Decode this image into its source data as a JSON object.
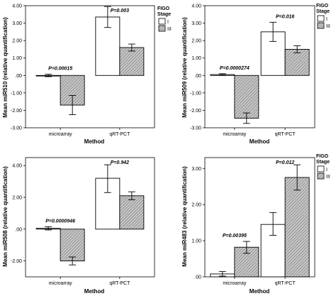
{
  "colors": {
    "stage_I_fill": "#ffffff",
    "stage_III_fill": "#9a9a9a",
    "stage_III_pattern": "diagonal-hatch",
    "axis": "#000000"
  },
  "chart_data": [
    {
      "type": "bar",
      "panel": "top-left",
      "categories": [
        "microarray",
        "qRT-PCT"
      ],
      "series": [
        {
          "name": "I",
          "values": [
            0.0,
            3.35
          ],
          "err_low": [
            -0.07,
            2.75
          ],
          "err_high": [
            0.07,
            3.95
          ]
        },
        {
          "name": "III",
          "values": [
            -1.7,
            1.6
          ],
          "err_low": [
            -2.25,
            1.4
          ],
          "err_high": [
            -1.15,
            1.8
          ]
        }
      ],
      "ylim": [
        -3.0,
        4.0
      ],
      "yticks": [
        "4.00",
        "3.00",
        "2.00",
        "1.00",
        ".00",
        "-1.00",
        "-2.00",
        "-3.00"
      ],
      "ytick_values": [
        4,
        3,
        2,
        1,
        0,
        -1,
        -2,
        -3
      ],
      "xlabel": "Method",
      "ylabel": "Mean miR510 (relative quantification)",
      "annotations": [
        {
          "text": "P=0.00015",
          "category": 0
        },
        {
          "text": "P=0.003",
          "category": 1
        }
      ],
      "legend": {
        "title_line1": "FIGO",
        "title_line2": "Stage",
        "labels": [
          "I",
          "III"
        ],
        "placement": "top-right"
      }
    },
    {
      "type": "bar",
      "panel": "top-right",
      "categories": [
        "microarray",
        "qRT-PCT"
      ],
      "series": [
        {
          "name": "I",
          "values": [
            0.05,
            2.5
          ],
          "err_low": [
            0.0,
            1.95
          ],
          "err_high": [
            0.1,
            3.05
          ]
        },
        {
          "name": "III",
          "values": [
            -2.45,
            1.5
          ],
          "err_low": [
            -2.75,
            1.3
          ],
          "err_high": [
            -2.15,
            1.7
          ]
        }
      ],
      "ylim": [
        -3.0,
        4.0
      ],
      "yticks": [
        "4.00",
        "3.00",
        "2.00",
        "1.00",
        ".00",
        "-1.00",
        "-2.00",
        "-3.00"
      ],
      "ytick_values": [
        4,
        3,
        2,
        1,
        0,
        -1,
        -2,
        -3
      ],
      "xlabel": "Method",
      "ylabel": "Mean miR509 (relative quantification)",
      "annotations": [
        {
          "text": "P=0.0000274",
          "category": 0
        },
        {
          "text": "P=0.016",
          "category": 1
        }
      ],
      "legend": {
        "title_line1": "FIGO",
        "title_line2": "Stage",
        "labels": [
          "I",
          "III"
        ],
        "placement": "top-right"
      }
    },
    {
      "type": "bar",
      "panel": "bottom-left",
      "categories": [
        "microarray",
        "qRT-PCT"
      ],
      "series": [
        {
          "name": "I",
          "values": [
            0.05,
            3.2
          ],
          "err_low": [
            -0.05,
            2.3
          ],
          "err_high": [
            0.15,
            4.05
          ]
        },
        {
          "name": "III",
          "values": [
            -2.0,
            2.1
          ],
          "err_low": [
            -2.25,
            1.85
          ],
          "err_high": [
            -1.75,
            2.35
          ]
        }
      ],
      "ylim": [
        -3.0,
        4.5
      ],
      "yticks": [
        "4.00",
        "2.00",
        ".00",
        "-2.00"
      ],
      "ytick_values": [
        4,
        2,
        0,
        -2
      ],
      "xlabel": "Method",
      "ylabel": "Mean miR508 (relative quantification)",
      "annotations": [
        {
          "text": "P=0.0000946",
          "category": 0
        },
        {
          "text": "P=0.942",
          "category": 1
        }
      ],
      "legend": null
    },
    {
      "type": "bar",
      "panel": "bottom-right",
      "categories": [
        "microarray",
        "qRT-PCT"
      ],
      "series": [
        {
          "name": "I",
          "values": [
            0.08,
            1.45
          ],
          "err_low": [
            0.02,
            1.15
          ],
          "err_high": [
            0.15,
            1.78
          ]
        },
        {
          "name": "III",
          "values": [
            0.82,
            2.75
          ],
          "err_low": [
            0.65,
            2.4
          ],
          "err_high": [
            0.98,
            3.1
          ]
        }
      ],
      "ylim": [
        0.0,
        3.3
      ],
      "yticks": [
        "3.00",
        "2.00",
        "1.00",
        ".00"
      ],
      "ytick_values": [
        3,
        2,
        1,
        0
      ],
      "xlabel": "Method",
      "ylabel": "Mean miR483 (relative quantification)",
      "annotations": [
        {
          "text": "P=0.00395",
          "category": 0
        },
        {
          "text": "P=0.012",
          "category": 1
        }
      ],
      "legend": {
        "title_line1": "FIGO",
        "title_line2": "Stage",
        "labels": [
          "I",
          "III"
        ],
        "placement": "top-right"
      }
    }
  ]
}
